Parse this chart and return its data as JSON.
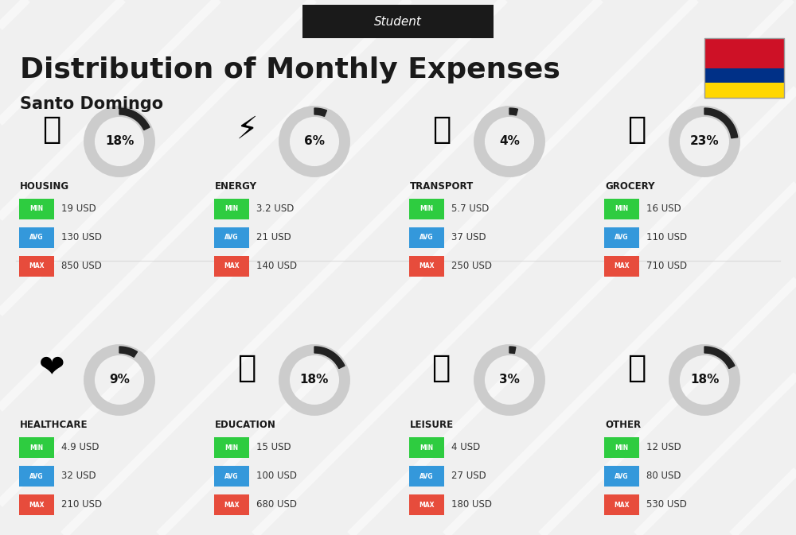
{
  "title": "Distribution of Monthly Expenses",
  "subtitle": "Santo Domingo",
  "header_label": "Student",
  "bg_color": "#f0f0f0",
  "categories": [
    {
      "name": "HOUSING",
      "percent": 18,
      "min": "19 USD",
      "avg": "130 USD",
      "max": "850 USD",
      "icon": "housing",
      "row": 0,
      "col": 0
    },
    {
      "name": "ENERGY",
      "percent": 6,
      "min": "3.2 USD",
      "avg": "21 USD",
      "max": "140 USD",
      "icon": "energy",
      "row": 0,
      "col": 1
    },
    {
      "name": "TRANSPORT",
      "percent": 4,
      "min": "5.7 USD",
      "avg": "37 USD",
      "max": "250 USD",
      "icon": "transport",
      "row": 0,
      "col": 2
    },
    {
      "name": "GROCERY",
      "percent": 23,
      "min": "16 USD",
      "avg": "110 USD",
      "max": "710 USD",
      "icon": "grocery",
      "row": 0,
      "col": 3
    },
    {
      "name": "HEALTHCARE",
      "percent": 9,
      "min": "4.9 USD",
      "avg": "32 USD",
      "max": "210 USD",
      "icon": "healthcare",
      "row": 1,
      "col": 0
    },
    {
      "name": "EDUCATION",
      "percent": 18,
      "min": "15 USD",
      "avg": "100 USD",
      "max": "680 USD",
      "icon": "education",
      "row": 1,
      "col": 1
    },
    {
      "name": "LEISURE",
      "percent": 3,
      "min": "4 USD",
      "avg": "27 USD",
      "max": "180 USD",
      "icon": "leisure",
      "row": 1,
      "col": 2
    },
    {
      "name": "OTHER",
      "percent": 18,
      "min": "12 USD",
      "avg": "80 USD",
      "max": "530 USD",
      "icon": "other",
      "row": 1,
      "col": 3
    }
  ],
  "min_color": "#2ecc40",
  "avg_color": "#3498db",
  "max_color": "#e74c3c",
  "label_color": "#ffffff",
  "circle_color": "#cccccc",
  "circle_filled_color": "#333333",
  "text_color": "#1a1a1a",
  "header_bg": "#1a1a1a",
  "header_text": "#ffffff"
}
